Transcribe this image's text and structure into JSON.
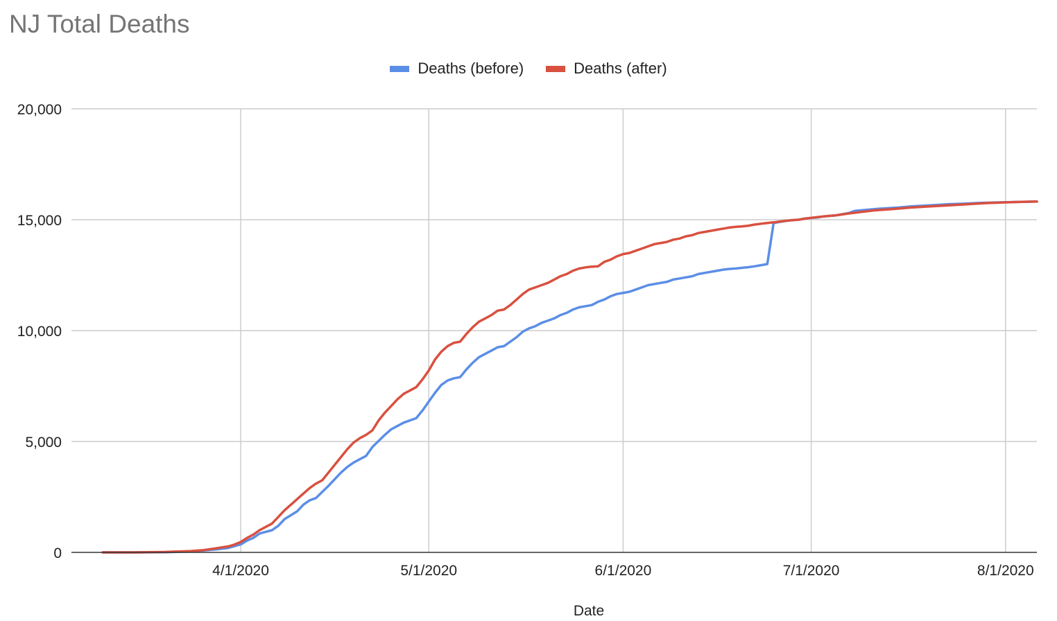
{
  "chart_data": {
    "type": "line",
    "title": "NJ Total Deaths",
    "xlabel": "Date",
    "ylabel": "",
    "ylim": [
      0,
      20000
    ],
    "xlim": [
      "2020-03-05",
      "2020-08-06"
    ],
    "yticks": [
      0,
      5000,
      10000,
      15000,
      20000
    ],
    "ytick_labels": [
      "0",
      "5,000",
      "10,000",
      "15,000",
      "20,000"
    ],
    "xticks": [
      "2020-04-01",
      "2020-05-01",
      "2020-06-01",
      "2020-07-01",
      "2020-08-01"
    ],
    "xtick_labels": [
      "4/1/2020",
      "5/1/2020",
      "6/1/2020",
      "7/1/2020",
      "8/1/2020"
    ],
    "grid": true,
    "legend_position": "top",
    "series": [
      {
        "name": "Deaths (before)",
        "color": "#5b8ee6",
        "points": [
          [
            "2020-03-10",
            0
          ],
          [
            "2020-03-15",
            0
          ],
          [
            "2020-03-20",
            10
          ],
          [
            "2020-03-24",
            40
          ],
          [
            "2020-03-28",
            130
          ],
          [
            "2020-03-30",
            200
          ],
          [
            "2020-04-01",
            360
          ],
          [
            "2020-04-02",
            530
          ],
          [
            "2020-04-03",
            650
          ],
          [
            "2020-04-04",
            850
          ],
          [
            "2020-04-06",
            1000
          ],
          [
            "2020-04-07",
            1200
          ],
          [
            "2020-04-08",
            1500
          ],
          [
            "2020-04-10",
            1850
          ],
          [
            "2020-04-11",
            2150
          ],
          [
            "2020-04-12",
            2350
          ],
          [
            "2020-04-13",
            2450
          ],
          [
            "2020-04-15",
            3000
          ],
          [
            "2020-04-17",
            3600
          ],
          [
            "2020-04-18",
            3850
          ],
          [
            "2020-04-19",
            4050
          ],
          [
            "2020-04-20",
            4200
          ],
          [
            "2020-04-21",
            4350
          ],
          [
            "2020-04-22",
            4750
          ],
          [
            "2020-04-24",
            5300
          ],
          [
            "2020-04-25",
            5550
          ],
          [
            "2020-04-27",
            5850
          ],
          [
            "2020-04-29",
            6050
          ],
          [
            "2020-04-30",
            6400
          ],
          [
            "2020-05-01",
            6800
          ],
          [
            "2020-05-02",
            7200
          ],
          [
            "2020-05-03",
            7550
          ],
          [
            "2020-05-04",
            7750
          ],
          [
            "2020-05-05",
            7850
          ],
          [
            "2020-05-06",
            7900
          ],
          [
            "2020-05-07",
            8250
          ],
          [
            "2020-05-08",
            8550
          ],
          [
            "2020-05-09",
            8800
          ],
          [
            "2020-05-10",
            8950
          ],
          [
            "2020-05-11",
            9100
          ],
          [
            "2020-05-12",
            9250
          ],
          [
            "2020-05-13",
            9300
          ],
          [
            "2020-05-14",
            9500
          ],
          [
            "2020-05-15",
            9700
          ],
          [
            "2020-05-16",
            9950
          ],
          [
            "2020-05-17",
            10100
          ],
          [
            "2020-05-18",
            10200
          ],
          [
            "2020-05-19",
            10350
          ],
          [
            "2020-05-20",
            10450
          ],
          [
            "2020-05-21",
            10550
          ],
          [
            "2020-05-22",
            10700
          ],
          [
            "2020-05-23",
            10800
          ],
          [
            "2020-05-24",
            10950
          ],
          [
            "2020-05-25",
            11050
          ],
          [
            "2020-05-26",
            11100
          ],
          [
            "2020-05-27",
            11150
          ],
          [
            "2020-05-28",
            11300
          ],
          [
            "2020-05-29",
            11400
          ],
          [
            "2020-05-30",
            11550
          ],
          [
            "2020-05-31",
            11650
          ],
          [
            "2020-06-01",
            11700
          ],
          [
            "2020-06-02",
            11750
          ],
          [
            "2020-06-03",
            11850
          ],
          [
            "2020-06-04",
            11950
          ],
          [
            "2020-06-05",
            12050
          ],
          [
            "2020-06-06",
            12100
          ],
          [
            "2020-06-07",
            12150
          ],
          [
            "2020-06-08",
            12200
          ],
          [
            "2020-06-09",
            12300
          ],
          [
            "2020-06-10",
            12350
          ],
          [
            "2020-06-11",
            12400
          ],
          [
            "2020-06-12",
            12450
          ],
          [
            "2020-06-13",
            12550
          ],
          [
            "2020-06-14",
            12600
          ],
          [
            "2020-06-15",
            12650
          ],
          [
            "2020-06-16",
            12700
          ],
          [
            "2020-06-17",
            12750
          ],
          [
            "2020-06-18",
            12780
          ],
          [
            "2020-06-19",
            12800
          ],
          [
            "2020-06-20",
            12830
          ],
          [
            "2020-06-21",
            12860
          ],
          [
            "2020-06-22",
            12900
          ],
          [
            "2020-06-23",
            12950
          ],
          [
            "2020-06-24",
            13000
          ],
          [
            "2020-06-25",
            14850
          ],
          [
            "2020-06-26",
            14900
          ],
          [
            "2020-06-27",
            14950
          ],
          [
            "2020-06-28",
            14980
          ],
          [
            "2020-06-29",
            15000
          ],
          [
            "2020-06-30",
            15050
          ],
          [
            "2020-07-01",
            15080
          ],
          [
            "2020-07-02",
            15100
          ],
          [
            "2020-07-03",
            15150
          ],
          [
            "2020-07-05",
            15200
          ],
          [
            "2020-07-06",
            15250
          ],
          [
            "2020-07-07",
            15300
          ],
          [
            "2020-07-08",
            15400
          ],
          [
            "2020-07-10",
            15450
          ],
          [
            "2020-07-12",
            15500
          ],
          [
            "2020-07-15",
            15550
          ],
          [
            "2020-07-17",
            15600
          ],
          [
            "2020-07-20",
            15650
          ],
          [
            "2020-07-23",
            15700
          ],
          [
            "2020-07-25",
            15720
          ],
          [
            "2020-07-28",
            15760
          ],
          [
            "2020-07-31",
            15780
          ],
          [
            "2020-08-03",
            15800
          ],
          [
            "2020-08-06",
            15820
          ]
        ]
      },
      {
        "name": "Deaths (after)",
        "color": "#d9503f",
        "points": [
          [
            "2020-03-10",
            0
          ],
          [
            "2020-03-15",
            0
          ],
          [
            "2020-03-20",
            20
          ],
          [
            "2020-03-24",
            60
          ],
          [
            "2020-03-26",
            100
          ],
          [
            "2020-03-28",
            180
          ],
          [
            "2020-03-30",
            270
          ],
          [
            "2020-03-31",
            350
          ],
          [
            "2020-04-01",
            470
          ],
          [
            "2020-04-02",
            650
          ],
          [
            "2020-04-03",
            800
          ],
          [
            "2020-04-04",
            1000
          ],
          [
            "2020-04-05",
            1150
          ],
          [
            "2020-04-06",
            1300
          ],
          [
            "2020-04-07",
            1600
          ],
          [
            "2020-04-08",
            1900
          ],
          [
            "2020-04-09",
            2150
          ],
          [
            "2020-04-10",
            2400
          ],
          [
            "2020-04-11",
            2650
          ],
          [
            "2020-04-12",
            2900
          ],
          [
            "2020-04-13",
            3100
          ],
          [
            "2020-04-14",
            3250
          ],
          [
            "2020-04-15",
            3600
          ],
          [
            "2020-04-16",
            3950
          ],
          [
            "2020-04-17",
            4300
          ],
          [
            "2020-04-18",
            4650
          ],
          [
            "2020-04-19",
            4950
          ],
          [
            "2020-04-20",
            5150
          ],
          [
            "2020-04-21",
            5300
          ],
          [
            "2020-04-22",
            5500
          ],
          [
            "2020-04-23",
            5950
          ],
          [
            "2020-04-24",
            6300
          ],
          [
            "2020-04-25",
            6600
          ],
          [
            "2020-04-26",
            6900
          ],
          [
            "2020-04-27",
            7150
          ],
          [
            "2020-04-28",
            7300
          ],
          [
            "2020-04-29",
            7450
          ],
          [
            "2020-04-30",
            7800
          ],
          [
            "2020-05-01",
            8200
          ],
          [
            "2020-05-02",
            8700
          ],
          [
            "2020-05-03",
            9050
          ],
          [
            "2020-05-04",
            9300
          ],
          [
            "2020-05-05",
            9450
          ],
          [
            "2020-05-06",
            9500
          ],
          [
            "2020-05-07",
            9850
          ],
          [
            "2020-05-08",
            10150
          ],
          [
            "2020-05-09",
            10400
          ],
          [
            "2020-05-10",
            10550
          ],
          [
            "2020-05-11",
            10700
          ],
          [
            "2020-05-12",
            10900
          ],
          [
            "2020-05-13",
            10950
          ],
          [
            "2020-05-14",
            11150
          ],
          [
            "2020-05-15",
            11400
          ],
          [
            "2020-05-16",
            11650
          ],
          [
            "2020-05-17",
            11850
          ],
          [
            "2020-05-18",
            11950
          ],
          [
            "2020-05-19",
            12050
          ],
          [
            "2020-05-20",
            12150
          ],
          [
            "2020-05-21",
            12300
          ],
          [
            "2020-05-22",
            12450
          ],
          [
            "2020-05-23",
            12550
          ],
          [
            "2020-05-24",
            12700
          ],
          [
            "2020-05-25",
            12800
          ],
          [
            "2020-05-26",
            12850
          ],
          [
            "2020-05-27",
            12880
          ],
          [
            "2020-05-28",
            12900
          ],
          [
            "2020-05-29",
            13100
          ],
          [
            "2020-05-30",
            13200
          ],
          [
            "2020-05-31",
            13350
          ],
          [
            "2020-06-01",
            13450
          ],
          [
            "2020-06-02",
            13500
          ],
          [
            "2020-06-03",
            13600
          ],
          [
            "2020-06-04",
            13700
          ],
          [
            "2020-06-05",
            13800
          ],
          [
            "2020-06-06",
            13900
          ],
          [
            "2020-06-07",
            13950
          ],
          [
            "2020-06-08",
            14000
          ],
          [
            "2020-06-09",
            14100
          ],
          [
            "2020-06-10",
            14150
          ],
          [
            "2020-06-11",
            14250
          ],
          [
            "2020-06-12",
            14300
          ],
          [
            "2020-06-13",
            14400
          ],
          [
            "2020-06-14",
            14450
          ],
          [
            "2020-06-15",
            14500
          ],
          [
            "2020-06-16",
            14550
          ],
          [
            "2020-06-17",
            14600
          ],
          [
            "2020-06-18",
            14650
          ],
          [
            "2020-06-19",
            14680
          ],
          [
            "2020-06-20",
            14700
          ],
          [
            "2020-06-21",
            14730
          ],
          [
            "2020-06-22",
            14780
          ],
          [
            "2020-06-23",
            14820
          ],
          [
            "2020-06-24",
            14850
          ],
          [
            "2020-06-25",
            14880
          ],
          [
            "2020-06-26",
            14920
          ],
          [
            "2020-06-27",
            14950
          ],
          [
            "2020-06-28",
            14980
          ],
          [
            "2020-06-29",
            15000
          ],
          [
            "2020-06-30",
            15050
          ],
          [
            "2020-07-01",
            15080
          ],
          [
            "2020-07-02",
            15120
          ],
          [
            "2020-07-03",
            15150
          ],
          [
            "2020-07-05",
            15200
          ],
          [
            "2020-07-07",
            15280
          ],
          [
            "2020-07-09",
            15350
          ],
          [
            "2020-07-11",
            15420
          ],
          [
            "2020-07-14",
            15480
          ],
          [
            "2020-07-17",
            15550
          ],
          [
            "2020-07-20",
            15600
          ],
          [
            "2020-07-23",
            15650
          ],
          [
            "2020-07-26",
            15700
          ],
          [
            "2020-07-29",
            15750
          ],
          [
            "2020-08-01",
            15780
          ],
          [
            "2020-08-03",
            15800
          ],
          [
            "2020-08-06",
            15820
          ]
        ]
      }
    ]
  }
}
